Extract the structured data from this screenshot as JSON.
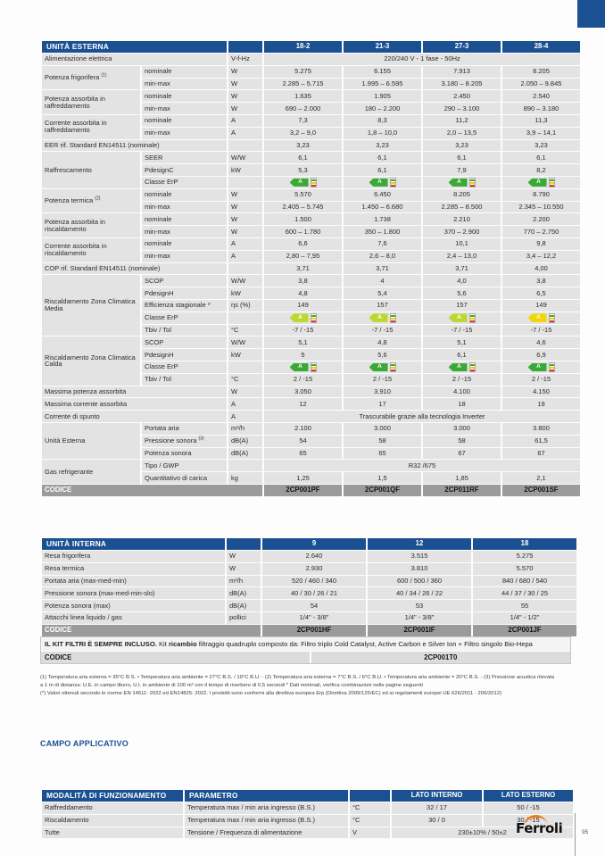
{
  "colors": {
    "blue": "#1b5193",
    "cell_gray": "#e3e3e3",
    "codice_gray": "#9b9b9b",
    "orange": "#ef7d17",
    "erp": {
      "g": "#3aa935",
      "c": "#bed62f",
      "y": "#f2d505"
    }
  },
  "unita_esterna": {
    "header": [
      {
        "t": "UNITÀ ESTERNA",
        "c": "h-lbl",
        "cs": 2
      },
      {
        "t": "",
        "c": "h-unit"
      },
      {
        "t": "18-2"
      },
      {
        "t": "21-3"
      },
      {
        "t": "27-3"
      },
      {
        "t": "28-4"
      }
    ],
    "rows": [
      [
        {
          "t": "Alimentazione elettrica",
          "c": "lbl",
          "cs": 2
        },
        {
          "t": "V-f-Hz",
          "c": "unit"
        },
        {
          "t": "220/240 V - 1 fase - 50Hz",
          "cs": 4
        }
      ],
      [
        {
          "t": "Potenza frigorifera ",
          "s": "(1)",
          "c": "lbl",
          "rs": 2
        },
        {
          "t": "nominale",
          "c": "sub"
        },
        {
          "t": "W",
          "c": "unit"
        },
        {
          "t": "5.275"
        },
        {
          "t": "6.155"
        },
        {
          "t": "7.913"
        },
        {
          "t": "8.205"
        }
      ],
      [
        {
          "t": "min-max",
          "c": "sub"
        },
        {
          "t": "W",
          "c": "unit"
        },
        {
          "t": "2.285 – 5.715"
        },
        {
          "t": "1.995 – 6.595"
        },
        {
          "t": "3.180 – 8.205"
        },
        {
          "t": "2.050 – 9.845"
        }
      ],
      [
        {
          "t": "Potenza assorbita in raffreddamento",
          "c": "lbl",
          "rs": 2
        },
        {
          "t": "nominale",
          "c": "sub"
        },
        {
          "t": "W",
          "c": "unit"
        },
        {
          "t": "1.635"
        },
        {
          "t": "1.905"
        },
        {
          "t": "2.450"
        },
        {
          "t": "2.540"
        }
      ],
      [
        {
          "t": "min-max",
          "c": "sub"
        },
        {
          "t": "W",
          "c": "unit"
        },
        {
          "t": "690 – 2.000"
        },
        {
          "t": "180 – 2.200"
        },
        {
          "t": "290 – 3.100"
        },
        {
          "t": "890 – 3.180"
        }
      ],
      [
        {
          "t": "Corrente assorbita in raffreddamento",
          "c": "lbl",
          "rs": 2
        },
        {
          "t": "nominale",
          "c": "sub"
        },
        {
          "t": "A",
          "c": "unit"
        },
        {
          "t": "7,3"
        },
        {
          "t": "8,3"
        },
        {
          "t": "11,2"
        },
        {
          "t": "11,3"
        }
      ],
      [
        {
          "t": "min-max",
          "c": "sub"
        },
        {
          "t": "A",
          "c": "unit"
        },
        {
          "t": "3,2 – 9,0"
        },
        {
          "t": "1,8 – 10,0"
        },
        {
          "t": "2,0 – 13,5"
        },
        {
          "t": "3,9 – 14,1"
        }
      ],
      [
        {
          "t": "EER rif. Standard EN14511 (nominale)",
          "c": "lbl",
          "cs": 2
        },
        {
          "t": "",
          "c": "unit"
        },
        {
          "t": "3,23"
        },
        {
          "t": "3,23"
        },
        {
          "t": "3,23"
        },
        {
          "t": "3,23"
        }
      ],
      [
        {
          "t": "Raffrescamento",
          "c": "lbl",
          "rs": 3
        },
        {
          "t": "SEER",
          "c": "sub"
        },
        {
          "t": "W/W",
          "c": "unit"
        },
        {
          "t": "6,1"
        },
        {
          "t": "6,1"
        },
        {
          "t": "6,1"
        },
        {
          "t": "6,1"
        }
      ],
      [
        {
          "t": "PdesignC",
          "c": "sub"
        },
        {
          "t": "kW",
          "c": "unit"
        },
        {
          "t": "5,3"
        },
        {
          "t": "6,1"
        },
        {
          "t": "7,9"
        },
        {
          "t": "8,2"
        }
      ],
      [
        {
          "t": "Classe ErP",
          "c": "sub"
        },
        {
          "t": "",
          "c": "unit"
        },
        {
          "t": "A",
          "e": "g"
        },
        {
          "t": "A",
          "e": "g"
        },
        {
          "t": "A",
          "e": "g"
        },
        {
          "t": "A",
          "e": "g"
        }
      ],
      [
        {
          "t": "Potenza termica ",
          "s": "(2)",
          "c": "lbl",
          "rs": 2
        },
        {
          "t": "nominale",
          "c": "sub"
        },
        {
          "t": "W",
          "c": "unit"
        },
        {
          "t": "5.570"
        },
        {
          "t": "6.450"
        },
        {
          "t": "8.205"
        },
        {
          "t": "8.790"
        }
      ],
      [
        {
          "t": "min-max",
          "c": "sub"
        },
        {
          "t": "W",
          "c": "unit"
        },
        {
          "t": "2.405 – 5.745"
        },
        {
          "t": "1.450 – 6.680"
        },
        {
          "t": "2.285 – 8.500"
        },
        {
          "t": "2.345 – 10.550"
        }
      ],
      [
        {
          "t": "Potenza assorbita in riscaldamento",
          "c": "lbl",
          "rs": 2
        },
        {
          "t": "nominale",
          "c": "sub"
        },
        {
          "t": "W",
          "c": "unit"
        },
        {
          "t": "1.500"
        },
        {
          "t": "1.738"
        },
        {
          "t": "2.210"
        },
        {
          "t": "2.200"
        }
      ],
      [
        {
          "t": "min-max",
          "c": "sub"
        },
        {
          "t": "W",
          "c": "unit"
        },
        {
          "t": "600 – 1.780"
        },
        {
          "t": "350 – 1.800"
        },
        {
          "t": "370 – 2.900"
        },
        {
          "t": "770 – 2.750"
        }
      ],
      [
        {
          "t": "Corrente assorbita in riscaldamento",
          "c": "lbl",
          "rs": 2
        },
        {
          "t": "nominale",
          "c": "sub"
        },
        {
          "t": "A",
          "c": "unit"
        },
        {
          "t": "6,6"
        },
        {
          "t": "7,6"
        },
        {
          "t": "10,1"
        },
        {
          "t": "9,8"
        }
      ],
      [
        {
          "t": "min-max",
          "c": "sub"
        },
        {
          "t": "A",
          "c": "unit"
        },
        {
          "t": "2,80 – 7,95"
        },
        {
          "t": "2,6 – 8,0"
        },
        {
          "t": "2,4 – 13,0"
        },
        {
          "t": "3,4 – 12,2"
        }
      ],
      [
        {
          "t": "COP rif. Standard EN14511 (nominale)",
          "c": "lbl",
          "cs": 2
        },
        {
          "t": "",
          "c": "unit"
        },
        {
          "t": "3,71"
        },
        {
          "t": "3,71"
        },
        {
          "t": "3,71"
        },
        {
          "t": "4,00"
        }
      ],
      [
        {
          "t": "Riscaldamento Zona Climatica Media",
          "c": "lbl",
          "rs": 5
        },
        {
          "t": "SCOP",
          "c": "sub"
        },
        {
          "t": "W/W",
          "c": "unit"
        },
        {
          "t": "3,8"
        },
        {
          "t": "4"
        },
        {
          "t": "4,0"
        },
        {
          "t": "3,8"
        }
      ],
      [
        {
          "t": "PdesignH",
          "c": "sub"
        },
        {
          "t": "kW",
          "c": "unit"
        },
        {
          "t": "4,8"
        },
        {
          "t": "5,4"
        },
        {
          "t": "5,6"
        },
        {
          "t": "6,5"
        }
      ],
      [
        {
          "t": "Efficienza stagionale *",
          "c": "sub"
        },
        {
          "t": "ηs (%)",
          "c": "unit"
        },
        {
          "t": "149"
        },
        {
          "t": "157"
        },
        {
          "t": "157"
        },
        {
          "t": "149"
        }
      ],
      [
        {
          "t": "Classe ErP",
          "c": "sub"
        },
        {
          "t": "",
          "c": "unit"
        },
        {
          "t": "A",
          "e": "c"
        },
        {
          "t": "A",
          "e": "c"
        },
        {
          "t": "A",
          "e": "c"
        },
        {
          "t": "A",
          "e": "y"
        }
      ],
      [
        {
          "t": "Tbiv / Tol",
          "c": "sub"
        },
        {
          "t": "°C",
          "c": "unit"
        },
        {
          "t": "-7 / -15"
        },
        {
          "t": "-7 / -15"
        },
        {
          "t": "-7 / -15"
        },
        {
          "t": "-7 / -15"
        }
      ],
      [
        {
          "t": "Riscaldamento Zona Climatica Calda",
          "c": "lbl",
          "rs": 4
        },
        {
          "t": "SCOP",
          "c": "sub"
        },
        {
          "t": "W/W",
          "c": "unit"
        },
        {
          "t": "5,1"
        },
        {
          "t": "4,8"
        },
        {
          "t": "5,1"
        },
        {
          "t": "4,6"
        }
      ],
      [
        {
          "t": "PdesignH",
          "c": "sub"
        },
        {
          "t": "kW",
          "c": "unit"
        },
        {
          "t": "5"
        },
        {
          "t": "5,6"
        },
        {
          "t": "6,1"
        },
        {
          "t": "6,9"
        }
      ],
      [
        {
          "t": "Classe ErP",
          "c": "sub"
        },
        {
          "t": "",
          "c": "unit"
        },
        {
          "t": "A",
          "e": "g"
        },
        {
          "t": "A",
          "e": "g"
        },
        {
          "t": "A",
          "e": "g"
        },
        {
          "t": "A",
          "e": "g"
        }
      ],
      [
        {
          "t": "Tbiv / Tol",
          "c": "sub"
        },
        {
          "t": "°C",
          "c": "unit"
        },
        {
          "t": "2 / -15"
        },
        {
          "t": "2 / -15"
        },
        {
          "t": "2 / -15"
        },
        {
          "t": "2 / -15"
        }
      ],
      [
        {
          "t": "Massima potenza assorbita",
          "c": "lbl",
          "cs": 2
        },
        {
          "t": "W",
          "c": "unit"
        },
        {
          "t": "3.050"
        },
        {
          "t": "3.910"
        },
        {
          "t": "4.100"
        },
        {
          "t": "4.150"
        }
      ],
      [
        {
          "t": "Massima corrente assorbita",
          "c": "lbl",
          "cs": 2
        },
        {
          "t": "A",
          "c": "unit"
        },
        {
          "t": "12"
        },
        {
          "t": "17"
        },
        {
          "t": "18"
        },
        {
          "t": "19"
        }
      ],
      [
        {
          "t": "Corrente di spunto",
          "c": "lbl",
          "cs": 2
        },
        {
          "t": "A",
          "c": "unit"
        },
        {
          "t": "Trascurabile grazie alla tecnologia Inverter",
          "cs": 4
        }
      ],
      [
        {
          "t": "Unità Esterna",
          "c": "lbl",
          "rs": 3
        },
        {
          "t": "Portata aria",
          "c": "sub"
        },
        {
          "t": "m³/h",
          "c": "unit"
        },
        {
          "t": "2.100"
        },
        {
          "t": "3.000"
        },
        {
          "t": "3.000"
        },
        {
          "t": "3.800"
        }
      ],
      [
        {
          "t": "Pressione sonora ",
          "s": "(3)",
          "c": "sub"
        },
        {
          "t": "dB(A)",
          "c": "unit"
        },
        {
          "t": "54"
        },
        {
          "t": "58"
        },
        {
          "t": "58"
        },
        {
          "t": "61,5"
        }
      ],
      [
        {
          "t": "Potenza sonora",
          "c": "sub"
        },
        {
          "t": "dB(A)",
          "c": "unit"
        },
        {
          "t": "65"
        },
        {
          "t": "65"
        },
        {
          "t": "67"
        },
        {
          "t": "67"
        }
      ],
      [
        {
          "t": "Gas refrigerante",
          "c": "lbl",
          "rs": 2
        },
        {
          "t": "Tipo / GWP",
          "c": "sub"
        },
        {
          "t": "",
          "c": "unit"
        },
        {
          "t": "R32 /675",
          "cs": 4
        }
      ],
      [
        {
          "t": "Quantitativo di carica",
          "c": "sub"
        },
        {
          "t": "kg",
          "c": "unit"
        },
        {
          "t": "1,25"
        },
        {
          "t": "1,5"
        },
        {
          "t": "1,85"
        },
        {
          "t": "2,1"
        }
      ],
      [
        {
          "t": "CODICE",
          "c": "cod",
          "cs": 3
        },
        {
          "t": "2CP001PF",
          "c": "codv"
        },
        {
          "t": "2CP001QF",
          "c": "codv"
        },
        {
          "t": "2CP011RF",
          "c": "codv"
        },
        {
          "t": "2CP001SF",
          "c": "codv"
        }
      ]
    ]
  },
  "unita_interna": {
    "header": [
      {
        "t": "UNITÀ INTERNA",
        "c": "h-lbl"
      },
      {
        "t": "",
        "c": "h-unit"
      },
      {
        "t": "9"
      },
      {
        "t": "12"
      },
      {
        "t": "18"
      }
    ],
    "rows": [
      [
        {
          "t": "Resa frigorifera",
          "c": "lbl"
        },
        {
          "t": "W",
          "c": "unit"
        },
        {
          "t": "2.640"
        },
        {
          "t": "3.515"
        },
        {
          "t": "5.275"
        }
      ],
      [
        {
          "t": "Resa termica",
          "c": "lbl"
        },
        {
          "t": "W",
          "c": "unit"
        },
        {
          "t": "2.930"
        },
        {
          "t": "3.810"
        },
        {
          "t": "5.570"
        }
      ],
      [
        {
          "t": "Portata aria (max-med-min)",
          "c": "lbl"
        },
        {
          "t": "m³/h",
          "c": "unit"
        },
        {
          "t": "520 / 460 / 340"
        },
        {
          "t": "600 / 500 / 360"
        },
        {
          "t": "840 / 680 / 540"
        }
      ],
      [
        {
          "t": "Pressione sonora (max-med-min-slo)",
          "c": "lbl"
        },
        {
          "t": "dB(A)",
          "c": "unit"
        },
        {
          "t": "40 / 30 / 26 / 21"
        },
        {
          "t": "40 / 34 / 26 / 22"
        },
        {
          "t": "44 / 37 / 30 / 25"
        }
      ],
      [
        {
          "t": "Potenza sonora (max)",
          "c": "lbl"
        },
        {
          "t": "dB(A)",
          "c": "unit"
        },
        {
          "t": "54"
        },
        {
          "t": "53"
        },
        {
          "t": "55"
        }
      ],
      [
        {
          "t": "Attacchi linea liquido / gas",
          "c": "lbl"
        },
        {
          "t": "pollici",
          "c": "unit"
        },
        {
          "t": "1/4\" - 3/8\""
        },
        {
          "t": "1/4\" - 3/8\""
        },
        {
          "t": "1/4\" - 1/2\""
        }
      ],
      [
        {
          "t": "CODICE",
          "c": "cod",
          "cs": 2
        },
        {
          "t": "2CP001HF",
          "c": "codv"
        },
        {
          "t": "2CP001IF",
          "c": "codv"
        },
        {
          "t": "2CP001JF",
          "c": "codv"
        }
      ]
    ]
  },
  "kit": {
    "bold1": "IL KIT FILTRI È SEMPRE INCLUSO.",
    "text1": " Kit ",
    "bold2": "ricambio",
    "text2": " filtraggio quadruplo composto da: Filtro triplo Cold Catalyst, Active Carbon e Silver Ion + Filtro singolo Bio-Hepa",
    "codice_label": "CODICE",
    "codice_value": "2CP001T0"
  },
  "footnotes": [
    "(1) Temperatura aria esterna = 35°C B.S. • Temperatura aria ambiente = 27°C B.S. / 19°C B.U. - (2) Temperatura aria esterna = 7°C B.S. / 6°C B.U. • Temperatura aria ambiente = 20°C B.S. - (3) Pressione acustica rilevata",
    "a 1 m di distanza: U.E. in campo libero, U.I. in ambiente di 100 m³ con il tempo di riverbero di 0,5 secondi * Dati nominali, verifica combinazioni nelle pagine seguenti",
    "(*) Valori ottenuti secondo le norme EN 14511: 2022 ed EN14825: 2022. I prodotti sono conformi alla direttiva europea Erp (Direttiva 2009/125/EC) ed ai regolamenti europei UE 626/2011 - 206/2012)"
  ],
  "campo_applicativo": {
    "heading": "CAMPO APPLICATIVO",
    "table": {
      "header": [
        {
          "t": "MODALITÀ DI FUNZIONAMENTO",
          "c": "h-lbl"
        },
        {
          "t": "PARAMETRO",
          "c": "h-lbl"
        },
        {
          "t": "",
          "c": "h-unit"
        },
        {
          "t": "LATO INTERNO"
        },
        {
          "t": "LATO ESTERNO"
        }
      ],
      "rows": [
        [
          {
            "t": "Raffreddamento",
            "c": "lbl"
          },
          {
            "t": "Temperatura max / min aria ingresso (B.S.)",
            "c": "sub"
          },
          {
            "t": "°C",
            "c": "unit"
          },
          {
            "t": "32 / 17"
          },
          {
            "t": "50 / -15"
          }
        ],
        [
          {
            "t": "Riscaldamento",
            "c": "lbl"
          },
          {
            "t": "Temperatura max / min aria ingresso (B.S.)",
            "c": "sub"
          },
          {
            "t": "°C",
            "c": "unit"
          },
          {
            "t": "30 / 0"
          },
          {
            "t": "30 / -15"
          }
        ],
        [
          {
            "t": "Tutte",
            "c": "lbl"
          },
          {
            "t": "Tensione / Frequenza di alimentazione",
            "c": "sub"
          },
          {
            "t": "V",
            "c": "unit"
          },
          {
            "t": "230±10% / 50±2",
            "cs": 2
          }
        ]
      ]
    }
  },
  "footer": {
    "brand": "Ferroli",
    "page": "95"
  }
}
